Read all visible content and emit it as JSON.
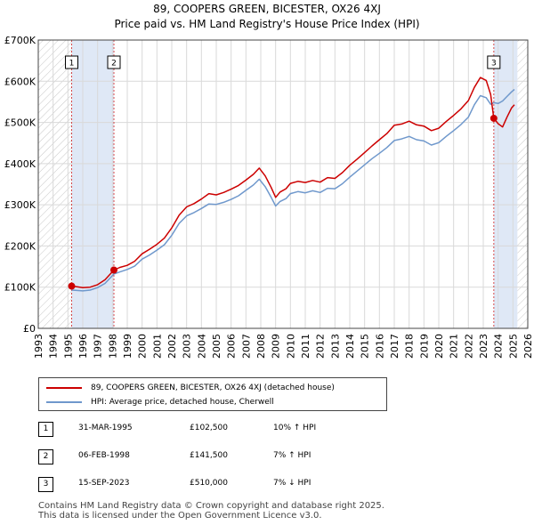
{
  "title_line1": "89, COOPERS GREEN, BICESTER, OX26 4XJ",
  "title_line2": "Price paid vs. HM Land Registry's House Price Index (HPI)",
  "colors": {
    "property": "#cc0000",
    "hpi": "#6f98cc",
    "shade": "#dfe8f6",
    "hatch": "#c8c8c8",
    "grid": "#d9d9d9"
  },
  "legend": {
    "property_label": "89, COOPERS GREEN, BICESTER, OX26 4XJ (detached house)",
    "hpi_label": "HPI: Average price, detached house, Cherwell"
  },
  "transactions": [
    {
      "num": "1",
      "date": "31-MAR-1995",
      "price": "£102,500",
      "hpi": "10% ↑ HPI",
      "x": 1995.25,
      "y": 102500
    },
    {
      "num": "2",
      "date": "06-FEB-1998",
      "price": "£141,500",
      "hpi": "7% ↑ HPI",
      "x": 1998.1,
      "y": 141500
    },
    {
      "num": "3",
      "date": "15-SEP-2023",
      "price": "£510,000",
      "hpi": "7% ↓ HPI",
      "x": 2023.71,
      "y": 510000
    }
  ],
  "footer_line1": "Contains HM Land Registry data © Crown copyright and database right 2025.",
  "footer_line2": "This data is licensed under the Open Government Licence v3.0.",
  "chart_data": {
    "type": "line",
    "title": "89, COOPERS GREEN, BICESTER, OX26 4XJ — Price paid vs. HM Land Registry's House Price Index (HPI)",
    "xlim": [
      1993,
      2026
    ],
    "ylim": [
      0,
      700000
    ],
    "x_ticks": [
      "1993",
      "1994",
      "1995",
      "1996",
      "1997",
      "1998",
      "1999",
      "2000",
      "2001",
      "2002",
      "2003",
      "2004",
      "2005",
      "2006",
      "2007",
      "2008",
      "2009",
      "2010",
      "2011",
      "2012",
      "2013",
      "2014",
      "2015",
      "2016",
      "2017",
      "2018",
      "2019",
      "2020",
      "2021",
      "2022",
      "2023",
      "2024",
      "2025",
      "2026"
    ],
    "y_ticks": [
      {
        "value": 0,
        "label": "£0"
      },
      {
        "value": 100000,
        "label": "£100K"
      },
      {
        "value": 200000,
        "label": "£200K"
      },
      {
        "value": 300000,
        "label": "£300K"
      },
      {
        "value": 400000,
        "label": "£400K"
      },
      {
        "value": 500000,
        "label": "£500K"
      },
      {
        "value": 600000,
        "label": "£600K"
      },
      {
        "value": 700000,
        "label": "£700K"
      }
    ],
    "shaded_ranges": [
      [
        1995.25,
        1998.1
      ],
      [
        2023.71,
        2025.3
      ]
    ],
    "hatched_ranges": [
      [
        1993,
        1995.25
      ],
      [
        2025.3,
        2026
      ]
    ],
    "series": [
      {
        "name": "89, COOPERS GREEN, BICESTER, OX26 4XJ (detached house)",
        "x": [
          1995.25,
          1995.6,
          1996.0,
          1996.5,
          1997.0,
          1997.5,
          1998.1,
          1998.5,
          1999.0,
          1999.5,
          2000.0,
          2000.5,
          2001.0,
          2001.5,
          2002.0,
          2002.5,
          2003.0,
          2003.5,
          2004.0,
          2004.5,
          2005.0,
          2005.5,
          2006.0,
          2006.5,
          2007.0,
          2007.5,
          2007.9,
          2008.3,
          2008.7,
          2009.0,
          2009.3,
          2009.7,
          2010.0,
          2010.5,
          2011.0,
          2011.5,
          2012.0,
          2012.5,
          2013.0,
          2013.5,
          2014.0,
          2014.5,
          2015.0,
          2015.5,
          2016.0,
          2016.5,
          2017.0,
          2017.5,
          2018.0,
          2018.5,
          2019.0,
          2019.5,
          2020.0,
          2020.5,
          2021.0,
          2021.5,
          2022.0,
          2022.4,
          2022.8,
          2023.2,
          2023.5,
          2023.71,
          2024.0,
          2024.3,
          2024.6,
          2024.9,
          2025.1
        ],
        "y": [
          102500,
          101000,
          99000,
          100000,
          106000,
          118000,
          141500,
          148000,
          153000,
          163000,
          181000,
          192000,
          204000,
          219000,
          244000,
          275000,
          295000,
          303000,
          314000,
          327000,
          324000,
          330000,
          338000,
          347000,
          360000,
          374000,
          389000,
          370000,
          342000,
          318000,
          331000,
          339000,
          352000,
          357000,
          354000,
          359000,
          355000,
          366000,
          364000,
          378000,
          396000,
          411000,
          427000,
          443000,
          458000,
          473000,
          493000,
          496000,
          503000,
          494000,
          491000,
          480000,
          486000,
          502000,
          517000,
          533000,
          553000,
          585000,
          609000,
          602000,
          568000,
          510000,
          497000,
          489000,
          513000,
          535000,
          543000
        ]
      },
      {
        "name": "HPI: Average price, detached house, Cherwell",
        "x": [
          1995.25,
          1995.6,
          1996.0,
          1996.5,
          1997.0,
          1997.5,
          1998.1,
          1998.5,
          1999.0,
          1999.5,
          2000.0,
          2000.5,
          2001.0,
          2001.5,
          2002.0,
          2002.5,
          2003.0,
          2003.5,
          2004.0,
          2004.5,
          2005.0,
          2005.5,
          2006.0,
          2006.5,
          2007.0,
          2007.5,
          2007.9,
          2008.3,
          2008.7,
          2009.0,
          2009.3,
          2009.7,
          2010.0,
          2010.5,
          2011.0,
          2011.5,
          2012.0,
          2012.5,
          2013.0,
          2013.5,
          2014.0,
          2014.5,
          2015.0,
          2015.5,
          2016.0,
          2016.5,
          2017.0,
          2017.5,
          2018.0,
          2018.5,
          2019.0,
          2019.5,
          2020.0,
          2020.5,
          2021.0,
          2021.5,
          2022.0,
          2022.4,
          2022.8,
          2023.2,
          2023.5,
          2023.71,
          2024.0,
          2024.3,
          2024.6,
          2024.9,
          2025.1
        ],
        "y": [
          93000,
          92000,
          91000,
          93000,
          99000,
          109000,
          132000,
          137000,
          143000,
          151000,
          168000,
          178000,
          190000,
          203000,
          226000,
          255000,
          273000,
          281000,
          291000,
          302000,
          301000,
          306000,
          313000,
          322000,
          335000,
          348000,
          362000,
          344000,
          318000,
          297000,
          308000,
          315000,
          327000,
          332000,
          329000,
          334000,
          330000,
          340000,
          339000,
          351000,
          367000,
          382000,
          397000,
          412000,
          425000,
          439000,
          456000,
          460000,
          466000,
          458000,
          455000,
          445000,
          451000,
          466000,
          480000,
          495000,
          513000,
          543000,
          565000,
          560000,
          544000,
          548000,
          546000,
          552000,
          563000,
          574000,
          580000
        ]
      }
    ]
  }
}
